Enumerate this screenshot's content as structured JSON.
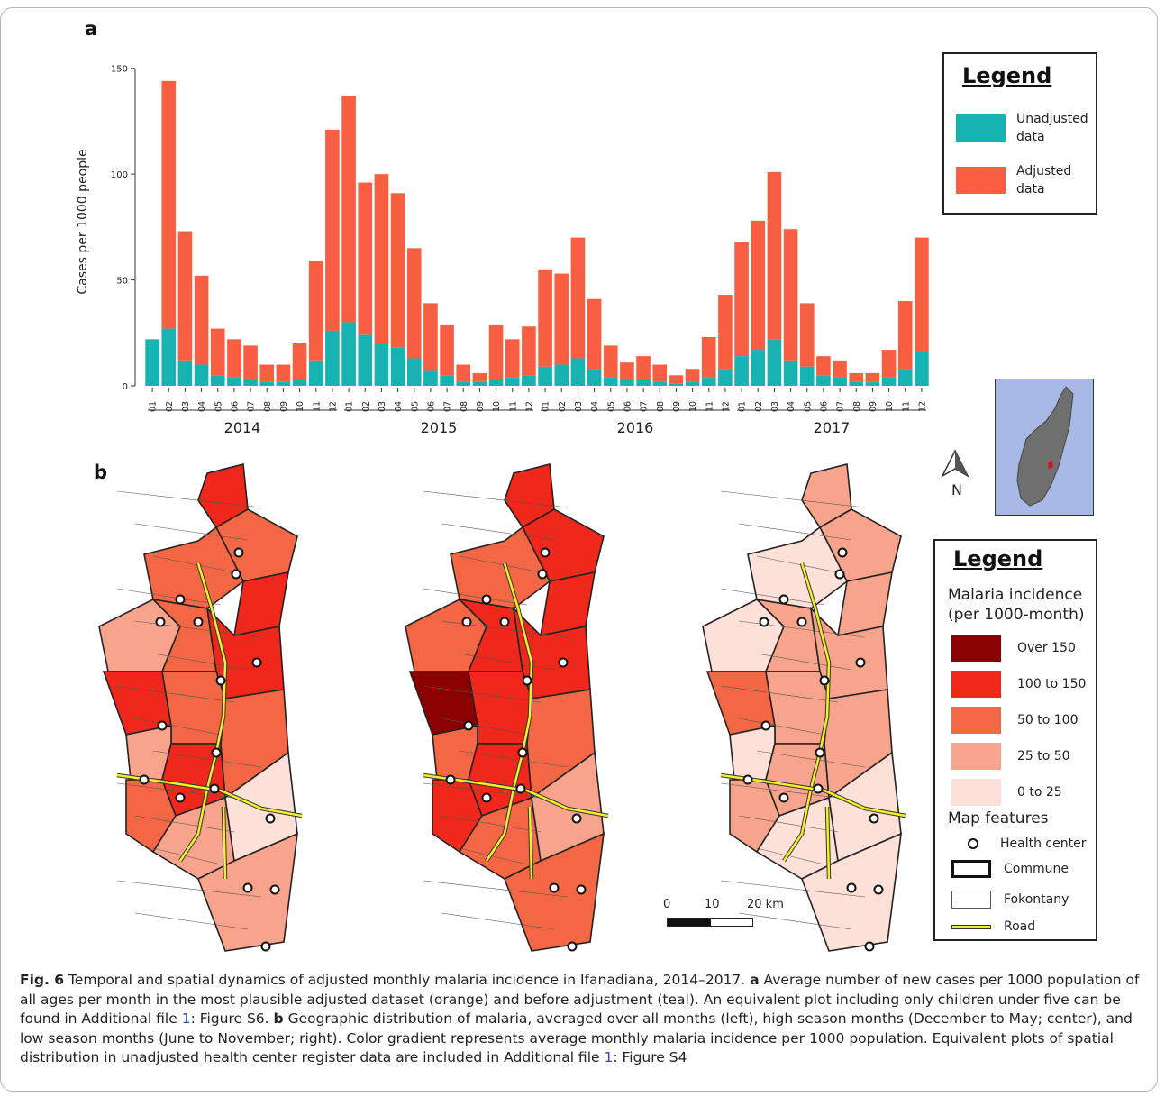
{
  "panels": {
    "a": "a",
    "b": "b"
  },
  "chart_data": {
    "type": "bar",
    "stacked": true,
    "ylabel": "Cases per 1000 people",
    "ylim": [
      0,
      155
    ],
    "yticks": [
      0,
      50,
      100,
      150
    ],
    "categories": [
      "01",
      "02",
      "03",
      "04",
      "05",
      "06",
      "07",
      "08",
      "09",
      "10",
      "11",
      "12",
      "01",
      "02",
      "03",
      "04",
      "05",
      "06",
      "07",
      "08",
      "09",
      "10",
      "11",
      "12",
      "01",
      "02",
      "03",
      "04",
      "05",
      "06",
      "07",
      "08",
      "09",
      "10",
      "11",
      "12",
      "01",
      "02",
      "03",
      "04",
      "05",
      "06",
      "07",
      "08",
      "09",
      "10",
      "11",
      "12"
    ],
    "years": [
      "2014",
      "2015",
      "2016",
      "2017"
    ],
    "series": [
      {
        "name": "Unadjusted data",
        "color": "#17b3b3",
        "values": [
          22,
          27,
          12,
          10,
          5,
          4,
          3,
          2,
          2,
          3,
          12,
          26,
          30,
          24,
          20,
          18,
          13,
          7,
          5,
          2,
          2,
          3,
          4,
          5,
          9,
          10,
          13,
          8,
          4,
          3,
          3,
          2,
          1,
          2,
          4,
          8,
          14,
          17,
          22,
          12,
          9,
          5,
          4,
          2,
          2,
          4,
          8,
          16
        ]
      },
      {
        "name": "Adjusted data",
        "color": "#f85f42",
        "values": [
          22,
          144,
          73,
          52,
          27,
          22,
          19,
          10,
          10,
          20,
          59,
          121,
          137,
          96,
          100,
          91,
          65,
          39,
          29,
          10,
          6,
          29,
          22,
          28,
          55,
          53,
          70,
          41,
          19,
          11,
          14,
          10,
          5,
          8,
          23,
          43,
          68,
          78,
          101,
          74,
          39,
          14,
          12,
          6,
          6,
          17,
          40,
          70
        ]
      }
    ]
  },
  "legend_a": {
    "title": "Legend",
    "items": [
      {
        "label_1": "Unadjusted",
        "label_2": "data",
        "color": "#17b3b3"
      },
      {
        "label_1": "Adjusted",
        "label_2": "data",
        "color": "#f85f42"
      }
    ]
  },
  "legend_b": {
    "title": "Legend",
    "subtitle_1": "Malaria incidence",
    "subtitle_2": "(per 1000-month)",
    "classes": [
      {
        "label": "Over 150",
        "color": "#8b0000"
      },
      {
        "label": "100 to 150",
        "color": "#f0271b"
      },
      {
        "label": "50 to 100",
        "color": "#f46744"
      },
      {
        "label": "25 to 50",
        "color": "#f8a48c"
      },
      {
        "label": "0 to 25",
        "color": "#fde0d7"
      }
    ],
    "features_title": "Map features",
    "features": [
      "Health center",
      "Commune",
      "Fokontany",
      "Road"
    ]
  },
  "scale_bar": {
    "t0": "0",
    "t1": "10",
    "t2": "20 km"
  },
  "north_label": "N",
  "maps": [
    {
      "name": "left",
      "levels": [
        3,
        2,
        2,
        3,
        1,
        2,
        3,
        3,
        2,
        1,
        2,
        3,
        2,
        1,
        0,
        1
      ]
    },
    {
      "name": "center",
      "levels": [
        3,
        3,
        2,
        3,
        2,
        3,
        4,
        3,
        3,
        2,
        3,
        3,
        2,
        2,
        1,
        2
      ]
    },
    {
      "name": "right",
      "levels": [
        1,
        1,
        0,
        1,
        0,
        1,
        2,
        1,
        1,
        0,
        1,
        1,
        1,
        0,
        0,
        0
      ]
    }
  ],
  "caption": {
    "fig": "Fig. 6",
    "text1": " Temporal and spatial dynamics of adjusted monthly malaria incidence in Ifanadiana, 2014–2017. ",
    "a": "a",
    "text2": " Average number of new cases per 1000 population of all ages per month in the most plausible adjusted dataset (orange) and before adjustment (teal). An equivalent plot including only children under five can be found in Additional file ",
    "ref1": "1",
    "text3": ": Figure S6. ",
    "b": "b",
    "text4": " Geographic distribution of malaria, averaged over all months (left), high season months (December to May; center), and low season months (June to November; right). Color gradient represents average monthly malaria incidence per 1000 population. Equivalent plots of spatial distribution in unadjusted health center register data are included in Additional file ",
    "ref2": "1",
    "text5": ": Figure S4"
  }
}
